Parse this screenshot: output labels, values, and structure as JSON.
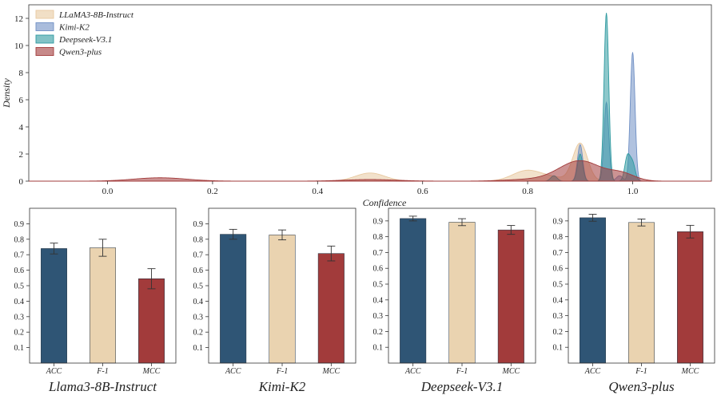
{
  "chart_data": [
    {
      "type": "area",
      "title": "",
      "xlabel": "Confidence",
      "ylabel": "Density",
      "xlim": [
        -0.15,
        1.15
      ],
      "ylim": [
        0,
        13
      ],
      "xticks": [
        "0.0",
        "0.2",
        "0.4",
        "0.6",
        "0.8",
        "1.0"
      ],
      "yticks": [
        "0",
        "2",
        "4",
        "6",
        "8",
        "10",
        "12"
      ],
      "legend_position": "top-left",
      "series": [
        {
          "name": "LLaMA3-8B-Instruct",
          "color": "#e8c9a0",
          "components": [
            {
              "center": 0.5,
              "height": 0.6,
              "width": 0.028
            },
            {
              "center": 0.8,
              "height": 0.8,
              "width": 0.028
            },
            {
              "center": 0.9,
              "height": 2.8,
              "width": 0.014
            },
            {
              "center": 0.85,
              "height": 0.2,
              "width": 0.02
            }
          ]
        },
        {
          "name": "Kimi-K2",
          "color": "#6f8fc4",
          "components": [
            {
              "center": 0.9,
              "height": 2.7,
              "width": 0.005
            },
            {
              "center": 0.95,
              "height": 5.8,
              "width": 0.0045
            },
            {
              "center": 1.0,
              "height": 9.5,
              "width": 0.0045
            },
            {
              "center": 0.975,
              "height": 0.4,
              "width": 0.006
            }
          ]
        },
        {
          "name": "Deepseek-V3.1",
          "color": "#2f9aa0",
          "components": [
            {
              "center": 0.95,
              "height": 12.4,
              "width": 0.0045
            },
            {
              "center": 0.9,
              "height": 2.0,
              "width": 0.005
            },
            {
              "center": 0.99,
              "height": 1.8,
              "width": 0.005
            },
            {
              "center": 1.0,
              "height": 1.3,
              "width": 0.005
            },
            {
              "center": 0.85,
              "height": 0.4,
              "width": 0.006
            }
          ]
        },
        {
          "name": "Qwen3-plus",
          "color": "#a23b3b",
          "components": [
            {
              "center": 0.1,
              "height": 0.25,
              "width": 0.05
            },
            {
              "center": 0.5,
              "height": 0.12,
              "width": 0.05
            },
            {
              "center": 0.8,
              "height": 0.12,
              "width": 0.045
            },
            {
              "center": 0.9,
              "height": 1.5,
              "width": 0.04
            },
            {
              "center": 0.98,
              "height": 0.5,
              "width": 0.025
            }
          ]
        }
      ]
    },
    {
      "type": "bar",
      "title": "Llama3-8B-Instruct",
      "categories": [
        "ACC",
        "F-1",
        "MCC"
      ],
      "values": [
        0.74,
        0.745,
        0.545
      ],
      "errors": [
        0.035,
        0.055,
        0.065
      ],
      "colors": [
        "#2f5575",
        "#ead3b0",
        "#a23b3b"
      ],
      "ylim": [
        0,
        1.0
      ],
      "yticks": [
        "0.1",
        "0.2",
        "0.3",
        "0.4",
        "0.5",
        "0.6",
        "0.7",
        "0.8",
        "0.9"
      ]
    },
    {
      "type": "bar",
      "title": "Kimi-K2",
      "categories": [
        "ACC",
        "F-1",
        "MCC"
      ],
      "values": [
        0.832,
        0.828,
        0.708
      ],
      "errors": [
        0.032,
        0.032,
        0.048
      ],
      "colors": [
        "#2f5575",
        "#ead3b0",
        "#a23b3b"
      ],
      "ylim": [
        0,
        1.0
      ],
      "yticks": [
        "0.1",
        "0.2",
        "0.3",
        "0.4",
        "0.5",
        "0.6",
        "0.7",
        "0.8",
        "0.9"
      ]
    },
    {
      "type": "bar",
      "title": "Deepseek-V3.1",
      "categories": [
        "ACC",
        "F-1",
        "MCC"
      ],
      "values": [
        0.915,
        0.892,
        0.843
      ],
      "errors": [
        0.015,
        0.022,
        0.028
      ],
      "colors": [
        "#2f5575",
        "#ead3b0",
        "#a23b3b"
      ],
      "ylim": [
        0,
        0.98
      ],
      "yticks": [
        "0.1",
        "0.2",
        "0.3",
        "0.4",
        "0.5",
        "0.6",
        "0.7",
        "0.8",
        "0.9"
      ]
    },
    {
      "type": "bar",
      "title": "Qwen3-plus",
      "categories": [
        "ACC",
        "F-1",
        "MCC"
      ],
      "values": [
        0.92,
        0.89,
        0.832
      ],
      "errors": [
        0.022,
        0.022,
        0.04
      ],
      "colors": [
        "#2f5575",
        "#ead3b0",
        "#a23b3b"
      ],
      "ylim": [
        0,
        0.98
      ],
      "yticks": [
        "0.1",
        "0.2",
        "0.3",
        "0.4",
        "0.5",
        "0.6",
        "0.7",
        "0.8",
        "0.9"
      ]
    }
  ]
}
